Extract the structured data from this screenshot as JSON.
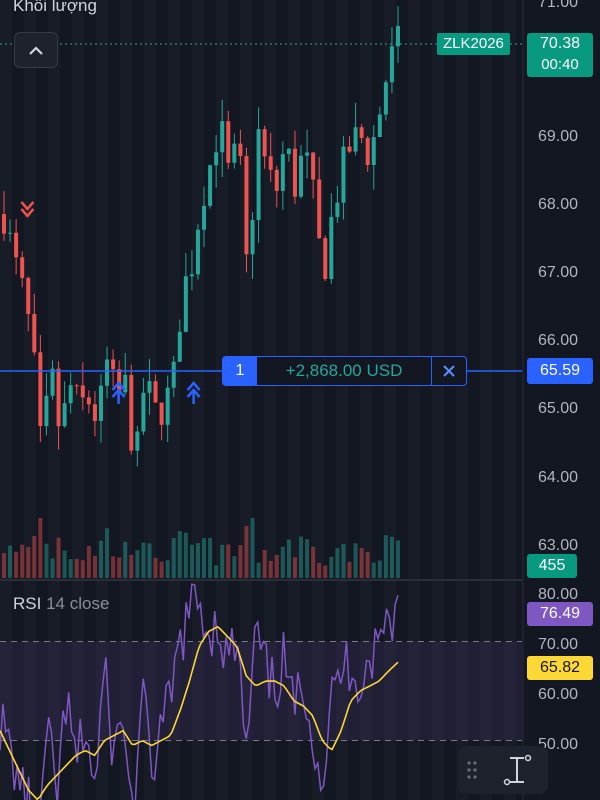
{
  "header": {
    "volume_label": "Khối lượng"
  },
  "price_axis": {
    "labels": [
      "71.00",
      "69.00",
      "68.00",
      "67.00",
      "66.00",
      "65.00",
      "64.00",
      "63.00"
    ]
  },
  "symbol": {
    "ticker": "ZLK2026",
    "last_price": "70.38",
    "countdown": "00:40"
  },
  "position": {
    "quantity": "1",
    "pnl": "+2,868.00 USD",
    "price": "65.59"
  },
  "volume": {
    "value": "455"
  },
  "rsi": {
    "name": "RSI",
    "params": "14 close",
    "value": "76.49",
    "ma_value": "65.82",
    "axis_labels": [
      "80.00",
      "70.00",
      "60.00",
      "50.00"
    ]
  },
  "icons": {
    "collapse": "chevron-up-icon",
    "drag": "drag-handle-icon",
    "cursor": "text-cursor-icon",
    "sell_signal": "double-arrow-down-icon",
    "buy_signal": "double-arrow-up-icon",
    "close": "close-icon"
  },
  "colors": {
    "background": "#131722",
    "up": "#26a69a",
    "down": "#ef5350",
    "position_line": "#2962ff",
    "rsi_line": "#7e57c2",
    "rsi_ma": "#fdd835"
  },
  "chart_data": {
    "type": "candlestick",
    "price_range": [
      62.9,
      71.0
    ],
    "price_ticks": [
      71,
      69,
      68,
      67,
      66,
      65,
      64,
      63
    ],
    "position_price": 65.59,
    "last_price": 70.38,
    "close_path": [
      68.0,
      67.4,
      66.9,
      66.2,
      64.6,
      65.8,
      64.9,
      65.6,
      65.3,
      65.4,
      65.1,
      65.9,
      65.4,
      65.6,
      64.4,
      65.7,
      65.2,
      65.3,
      65.6,
      66.9,
      67.3,
      68.2,
      68.7,
      69.3,
      68.5,
      69.0,
      67.0,
      69.2,
      68.6,
      68.3,
      69.0,
      68.4,
      68.9,
      68.2,
      67.1,
      68.0,
      68.6,
      69.0,
      69.1,
      68.8,
      69.4,
      70.1,
      70.38
    ],
    "volume_path": [
      0.5,
      0.3,
      0.4,
      0.5,
      0.9,
      0.3,
      0.6,
      0.4,
      0.3,
      0.5,
      0.4,
      0.6,
      0.3,
      0.4,
      0.7,
      0.3,
      0.4,
      0.3,
      0.4,
      0.5,
      0.4,
      0.5,
      0.4,
      0.3,
      0.4,
      0.3,
      0.9,
      0.3,
      0.4,
      0.3,
      0.6,
      0.4,
      0.5,
      0.4,
      0.3,
      0.5,
      0.4,
      0.3,
      0.4,
      0.3,
      0.5,
      0.4,
      0.5
    ],
    "rsi_path": [
      54,
      48,
      42,
      37,
      31,
      51,
      39,
      58,
      45,
      53,
      40,
      64,
      47,
      55,
      34,
      59,
      44,
      52,
      58,
      70,
      76,
      78,
      72,
      74,
      66,
      70,
      47,
      72,
      64,
      60,
      67,
      55,
      63,
      52,
      41,
      58,
      64,
      66,
      62,
      66,
      70,
      75,
      76.49
    ],
    "rsi_ma_path": [
      52,
      48,
      44,
      40,
      38,
      41,
      43,
      45,
      47,
      48,
      47,
      50,
      51,
      52,
      49,
      50,
      49,
      50,
      51,
      56,
      62,
      69,
      72,
      73,
      71,
      69,
      63,
      61,
      62,
      62,
      61,
      58,
      57,
      55,
      50,
      48,
      52,
      58,
      60,
      61,
      62,
      64,
      65.82
    ],
    "rsi_range": [
      38,
      82
    ],
    "rsi_levels": [
      70,
      50
    ],
    "sell_signals": [
      1
    ],
    "buy_signals": [
      12,
      20
    ]
  }
}
